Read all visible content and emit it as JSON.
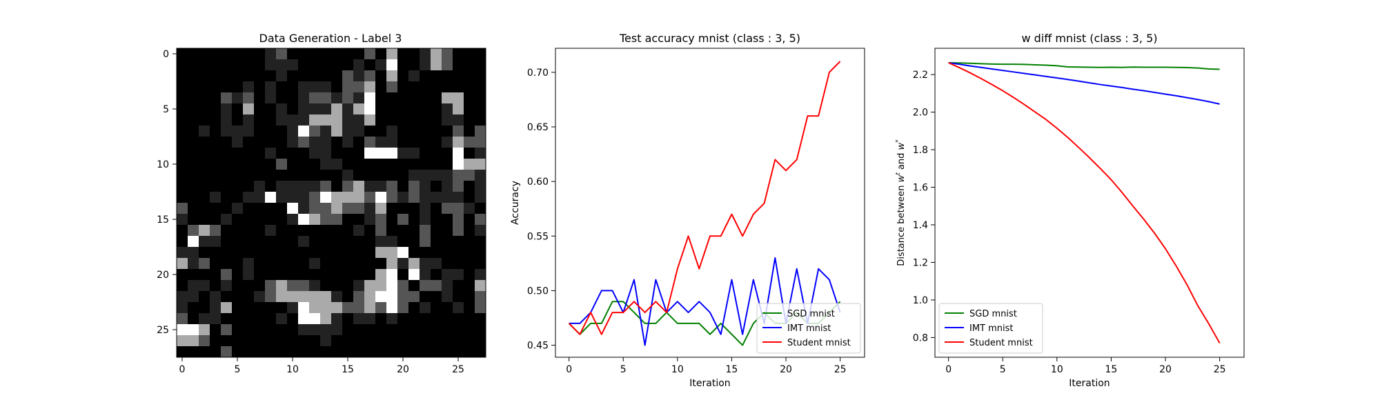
{
  "chart_data": [
    {
      "type": "heatmap",
      "title": "Data Generation - Label 3",
      "xlabel": "",
      "ylabel": "",
      "colormap": "gray",
      "xticks": [
        0,
        5,
        10,
        15,
        20,
        25
      ],
      "yticks": [
        0,
        5,
        10,
        15,
        20,
        25
      ],
      "size": [
        28,
        28
      ],
      "pixels": [
        "0000000012000000020300132000",
        "0000000011100000101400132000",
        "0000000001000002120301000000",
        "0000001010011102230200000000",
        "0000212010012212140000003300",
        "0000103001011131340000001300",
        "0000101001113331130000001100",
        "0010111000142131100100000202",
        "0000010000121101021100001322",
        "0000000010001100044411000401",
        "0000000002000110000000000433",
        "0000000000000001000001111221",
        "0000000101111202311202101201",
        "0001001141112433324212111101",
        "2000010000412232213000102210",
        "1000100000143220012020100202",
        "0232000010000000102000200201",
        "0411000000010000001100200000",
        "1100000000000000003340000000",
        "3120001000001000000313110000",
        "0000201000000000003404101101",
        "0110100023221000133420221003",
        "1101000123333310234422001002",
        "1001300000143332232420100102",
        "2011000001044310110100000000",
        "4430200000011110000000000000",
        "3320000000000100000000000000",
        "0000200000000000000000000000"
      ]
    },
    {
      "type": "line",
      "title": "Test accuracy mnist (class : 3, 5)",
      "xlabel": "Iteration",
      "ylabel": "Accuracy",
      "xlim": [
        -1.25,
        27.25
      ],
      "ylim": [
        0.439,
        0.722
      ],
      "xticks": [
        0,
        5,
        10,
        15,
        20,
        25
      ],
      "yticks": [
        "0.45",
        "0.50",
        "0.55",
        "0.60",
        "0.65",
        "0.70"
      ],
      "legend_location": "lower-right",
      "x": [
        0,
        1,
        2,
        3,
        4,
        5,
        6,
        7,
        8,
        9,
        10,
        11,
        12,
        13,
        14,
        15,
        16,
        17,
        18,
        19,
        20,
        21,
        22,
        23,
        24,
        25
      ],
      "series": [
        {
          "name": "SGD mnist",
          "color": "#008000",
          "values": [
            0.47,
            0.46,
            0.47,
            0.47,
            0.49,
            0.49,
            0.48,
            0.47,
            0.47,
            0.48,
            0.47,
            0.47,
            0.47,
            0.46,
            0.47,
            0.46,
            0.45,
            0.47,
            0.48,
            0.47,
            0.47,
            0.48,
            0.47,
            0.47,
            0.48,
            0.49
          ]
        },
        {
          "name": "IMT mnist",
          "color": "#0000ff",
          "values": [
            0.47,
            0.47,
            0.48,
            0.5,
            0.5,
            0.48,
            0.51,
            0.45,
            0.51,
            0.48,
            0.49,
            0.48,
            0.49,
            0.48,
            0.46,
            0.51,
            0.46,
            0.51,
            0.47,
            0.53,
            0.47,
            0.52,
            0.47,
            0.52,
            0.51,
            0.48
          ]
        },
        {
          "name": "Student mnist",
          "color": "#ff0000",
          "values": [
            0.47,
            0.46,
            0.48,
            0.46,
            0.48,
            0.48,
            0.49,
            0.48,
            0.49,
            0.48,
            0.52,
            0.55,
            0.52,
            0.55,
            0.55,
            0.57,
            0.55,
            0.57,
            0.58,
            0.62,
            0.61,
            0.62,
            0.66,
            0.66,
            0.7,
            0.71
          ]
        }
      ]
    },
    {
      "type": "line",
      "title": "w diff mnist (class : 3, 5)",
      "xlabel": "Iteration",
      "ylabel_prefix": "Distance between ",
      "ylabel_w1": "w",
      "ylabel_sup1": "t",
      "ylabel_and": " and ",
      "ylabel_w2": "w",
      "ylabel_sup2": "*",
      "xlim": [
        -1.25,
        27.25
      ],
      "ylim": [
        0.695,
        2.34
      ],
      "xticks": [
        0,
        5,
        10,
        15,
        20,
        25
      ],
      "yticks": [
        "0.8",
        "1.0",
        "1.2",
        "1.4",
        "1.6",
        "1.8",
        "2.0",
        "2.2"
      ],
      "legend_location": "lower-left",
      "x": [
        0,
        1,
        2,
        3,
        4,
        5,
        6,
        7,
        8,
        9,
        10,
        11,
        12,
        13,
        14,
        15,
        16,
        17,
        18,
        19,
        20,
        21,
        22,
        23,
        24,
        25
      ],
      "series": [
        {
          "name": "SGD mnist",
          "color": "#008000",
          "values": [
            2.263,
            2.262,
            2.26,
            2.258,
            2.256,
            2.255,
            2.255,
            2.254,
            2.252,
            2.25,
            2.247,
            2.241,
            2.24,
            2.239,
            2.238,
            2.239,
            2.238,
            2.24,
            2.239,
            2.239,
            2.239,
            2.238,
            2.237,
            2.235,
            2.23,
            2.228
          ]
        },
        {
          "name": "IMT mnist",
          "color": "#0000ff",
          "values": [
            2.263,
            2.255,
            2.246,
            2.238,
            2.23,
            2.222,
            2.214,
            2.206,
            2.198,
            2.19,
            2.182,
            2.174,
            2.165,
            2.156,
            2.147,
            2.139,
            2.131,
            2.122,
            2.114,
            2.105,
            2.096,
            2.087,
            2.077,
            2.067,
            2.056,
            2.043
          ]
        },
        {
          "name": "Student mnist",
          "color": "#ff0000",
          "values": [
            2.263,
            2.237,
            2.209,
            2.179,
            2.147,
            2.114,
            2.078,
            2.04,
            2.0,
            1.96,
            1.914,
            1.865,
            1.812,
            1.757,
            1.7,
            1.64,
            1.572,
            1.5,
            1.43,
            1.355,
            1.273,
            1.18,
            1.08,
            0.968,
            0.873,
            0.77
          ]
        }
      ]
    }
  ]
}
